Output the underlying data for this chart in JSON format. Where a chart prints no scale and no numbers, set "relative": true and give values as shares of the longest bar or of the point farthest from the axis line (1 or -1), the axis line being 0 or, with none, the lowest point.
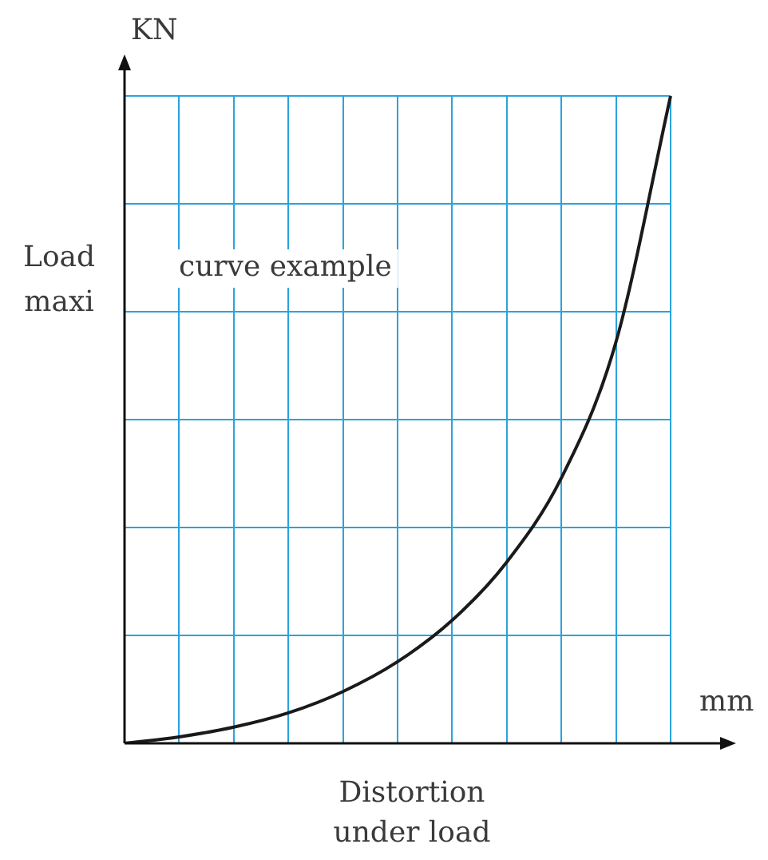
{
  "chart_data": {
    "type": "line",
    "relative": true,
    "xlabel": "Distortion under load",
    "ylabel": "Load maxi",
    "annotations": [
      "KN",
      "mm",
      "curve example"
    ],
    "categories": [
      null,
      null,
      null,
      null,
      null,
      null,
      null,
      null,
      null,
      null,
      null
    ],
    "series": [
      {
        "color": "#1a1a1a",
        "values": [
          0,
          0.01,
          0.025,
          0.047,
          0.08,
          0.126,
          0.19,
          0.28,
          0.41,
          0.62,
          1
        ]
      }
    ],
    "grid": true,
    "marker": "none"
  }
}
